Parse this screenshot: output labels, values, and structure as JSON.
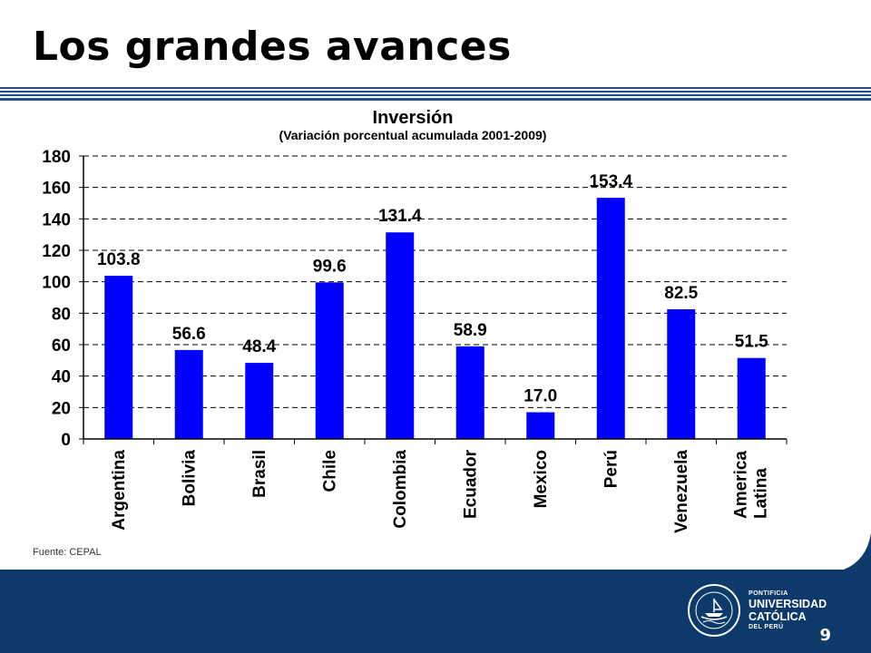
{
  "slide": {
    "title": "Los grandes avances",
    "source": "Fuente: CEPAL",
    "page_number": "9"
  },
  "logo": {
    "line1": "PONTIFICIA",
    "line2": "UNIVERSIDAD",
    "line3": "CATÓLICA",
    "line4": "DEL PERÚ",
    "seal_text": "ET LUX IN TENEBRIS LUCET"
  },
  "colors": {
    "bar": "#0000FF",
    "footer": "#0D3A6B",
    "rule": "#1F4E8C"
  },
  "chart_data": {
    "type": "bar",
    "title": "Inversión",
    "subtitle": "(Variación porcentual acumulada 2001-2009)",
    "categories": [
      "Argentina",
      "Bolivia",
      "Brasil",
      "Chile",
      "Colombia",
      "Ecuador",
      "Mexico",
      "Perú",
      "Venezuela",
      "America Latina"
    ],
    "values": [
      103.8,
      56.6,
      48.4,
      99.6,
      131.4,
      58.9,
      17.0,
      153.4,
      82.5,
      51.5
    ],
    "data_labels": [
      "103.8",
      "56.6",
      "48.4",
      "99.6",
      "131.4",
      "58.9",
      "17.0",
      "153.4",
      "82.5",
      "51.5"
    ],
    "y_ticks": [
      "0",
      "20",
      "40",
      "60",
      "80",
      "100",
      "120",
      "140",
      "160",
      "180"
    ],
    "ylim": [
      0,
      180
    ],
    "grid": true,
    "xlabel": "",
    "ylabel": ""
  }
}
